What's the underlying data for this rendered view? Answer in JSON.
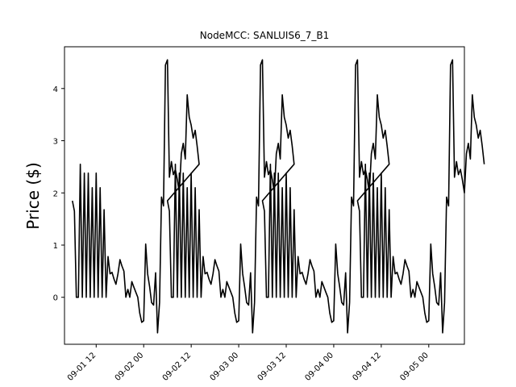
{
  "chart_data": {
    "type": "line",
    "title": "NodeMCC: SANLUIS6_7_B1",
    "xlabel": "",
    "ylabel": "Price ($)",
    "x_axis_kind": "datetime",
    "xlim": [
      "2023-09-01 04:00",
      "2023-09-05 09:00"
    ],
    "ylim": [
      -0.9,
      4.8
    ],
    "x_tick_labels": [
      "09-01 12",
      "09-02 00",
      "09-02 12",
      "09-03 00",
      "09-03 12",
      "09-04 00",
      "09-04 12",
      "09-05 00"
    ],
    "y_ticks": [
      0,
      1,
      2,
      3,
      4
    ],
    "grid": false,
    "line_color": "#000000",
    "series": [
      {
        "pattern_start": "2023-09-01 06:00",
        "pattern_step_hours": 0.5,
        "pattern_days": 4,
        "day_pattern": [
          1.85,
          1.65,
          0.0,
          0.0,
          2.55,
          0.0,
          2.38,
          0.0,
          2.38,
          0.0,
          2.1,
          0.0,
          2.38,
          0.0,
          2.1,
          0.0,
          1.68,
          0.0,
          0.78,
          0.45,
          0.48,
          0.35,
          0.25,
          0.45,
          0.72,
          0.6,
          0.5,
          0.0,
          0.15,
          0.0,
          0.3,
          0.2,
          0.1,
          0.0,
          -0.3,
          -0.48,
          -0.45,
          1.02,
          0.45,
          0.2,
          -0.1,
          -0.15,
          0.47,
          -0.68,
          -0.1,
          1.92,
          1.75,
          4.45,
          4.55,
          2.3,
          2.6,
          2.35,
          2.45,
          2.25,
          2.0,
          2.75,
          2.95,
          2.65,
          3.88,
          3.45,
          3.3,
          3.05,
          3.2,
          2.9,
          2.55
        ]
      }
    ]
  }
}
